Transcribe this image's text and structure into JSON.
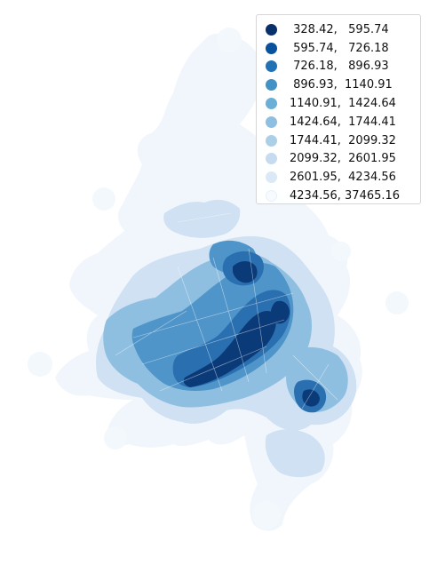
{
  "map": {
    "type": "choropleth",
    "colormap": "Blues (reversed)",
    "legend_position": "top-right",
    "legend": [
      {
        "label": " 328.42,   595.74",
        "color": "#08306b"
      },
      {
        "label": " 595.74,   726.18",
        "color": "#08519c"
      },
      {
        "label": " 726.18,   896.93",
        "color": "#2171b5"
      },
      {
        "label": " 896.93,  1140.91",
        "color": "#4292c6"
      },
      {
        "label": "1140.91,  1424.64",
        "color": "#6baed6"
      },
      {
        "label": "1424.64,  1744.41",
        "color": "#8fbfe0"
      },
      {
        "label": "1744.41,  2099.32",
        "color": "#accfe8"
      },
      {
        "label": "2099.32,  2601.95",
        "color": "#c6dbef"
      },
      {
        "label": "2601.95,  4234.56",
        "color": "#dbe9f6"
      },
      {
        "label": "4234.56, 37465.16",
        "color": "#f7fbff"
      }
    ]
  }
}
